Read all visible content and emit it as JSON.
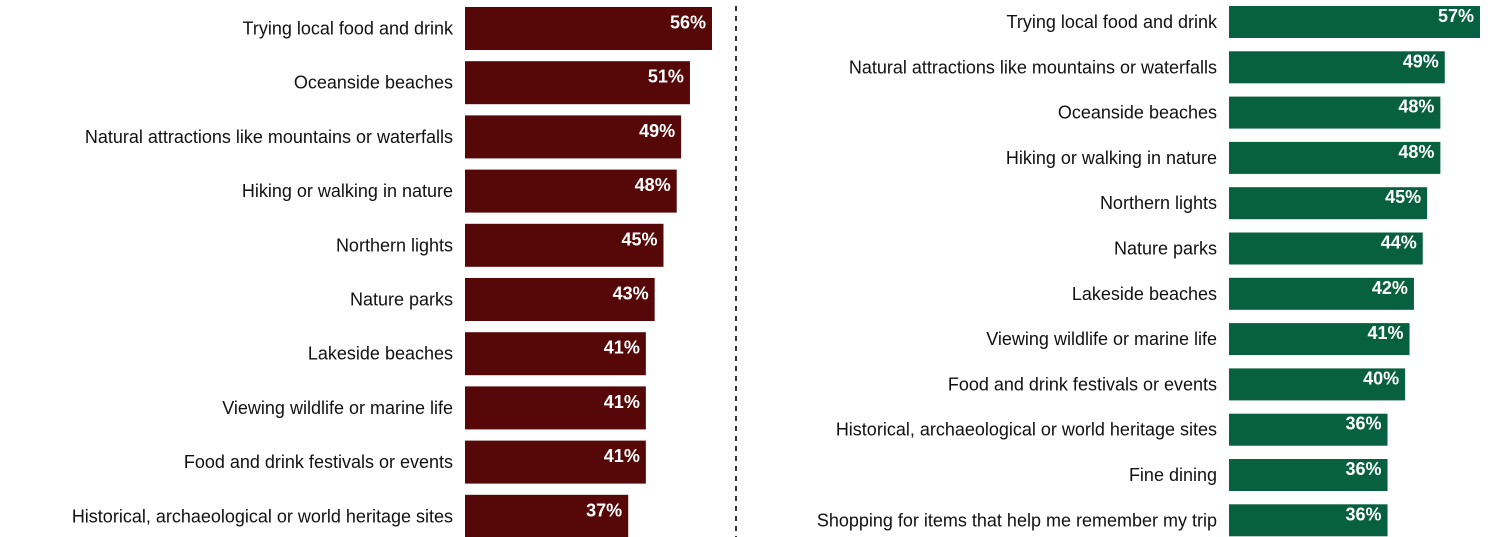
{
  "chart_data": [
    {
      "type": "bar",
      "orientation": "horizontal",
      "color": "#560707",
      "value_suffix": "%",
      "categories": [
        "Trying local food and drink",
        "Oceanside beaches",
        "Natural attractions like mountains or waterfalls",
        "Hiking or walking in nature",
        "Northern lights",
        "Nature parks",
        "Lakeside beaches",
        "Viewing wildlife or marine life",
        "Food and drink festivals or events",
        "Historical, archaeological or world heritage sites"
      ],
      "values": [
        56,
        51,
        49,
        48,
        45,
        43,
        41,
        41,
        41,
        37
      ],
      "labels": [
        "56%",
        "51%",
        "49%",
        "48%",
        "45%",
        "43%",
        "41%",
        "41%",
        "41%",
        "37%"
      ]
    },
    {
      "type": "bar",
      "orientation": "horizontal",
      "color": "#07603F",
      "value_suffix": "%",
      "categories": [
        "Trying local food and drink",
        "Natural attractions like mountains or waterfalls",
        "Oceanside beaches",
        "Hiking or walking in nature",
        "Northern lights",
        "Nature parks",
        "Lakeside beaches",
        "Viewing wildlife or marine life",
        "Food and drink festivals or events",
        "Historical, archaeological or world heritage sites",
        "Fine dining",
        "Shopping for items that help me remember my trip"
      ],
      "values": [
        57,
        49,
        48,
        48,
        45,
        44,
        42,
        41,
        40,
        36,
        36,
        36
      ],
      "labels": [
        "57%",
        "49%",
        "48%",
        "48%",
        "45%",
        "44%",
        "42%",
        "41%",
        "40%",
        "36%",
        "36%",
        "36%"
      ]
    }
  ],
  "divider": {
    "style": "dashed",
    "color": "#333333"
  }
}
